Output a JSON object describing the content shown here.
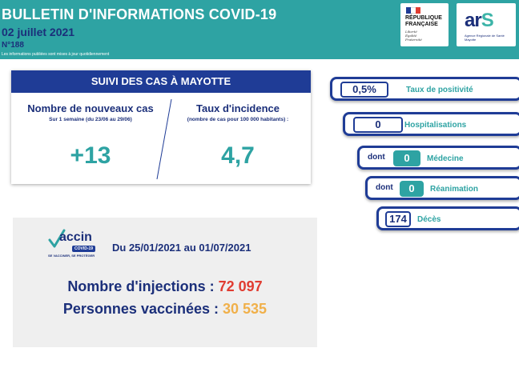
{
  "header": {
    "title": "BULLETIN D'INFORMATIONS COVID-19",
    "date": "02 juillet 2021",
    "number": "N°188",
    "note": "Les informations publiées sont mises à jour quotidiennement"
  },
  "logos": {
    "republique_lines": [
      "RÉPUBLIQUE",
      "FRANÇAISE"
    ],
    "motto_lines": [
      "Liberté",
      "Égalité",
      "Fraternité"
    ],
    "ars_word": "ar",
    "ars_s": "S",
    "ars_subtitle": "Agence Régionale de Santé Mayotte"
  },
  "cases": {
    "header": "SUIVI DES CAS À MAYOTTE",
    "new_cases": {
      "label": "Nombre de nouveaux cas",
      "sub": "Sur 1 semaine (du 23/06 au 29/06)",
      "value": "+13"
    },
    "incidence": {
      "label": "Taux d'incidence",
      "sub": "(nombre de cas pour 100 000 habitants) :",
      "value": "4,7"
    }
  },
  "stats": {
    "positivity": {
      "value": "0,5%",
      "label": "Taux de positivité"
    },
    "hospital": {
      "value": "0",
      "label": "Hospitalisations"
    },
    "medecine": {
      "prefix": "dont",
      "value": "0",
      "label": "Médecine"
    },
    "reanimation": {
      "prefix": "dont",
      "value": "0",
      "label": "Réanimation"
    },
    "deces": {
      "value": "174",
      "label": "Décès"
    }
  },
  "vaccine": {
    "logo_word": "accin",
    "logo_tag": "COVID-19",
    "logo_slogan": "SE VACCINER, SE PROTÉGER",
    "period": "Du 25/01/2021 au 01/07/2021",
    "injections_label": "Nombre d'injections : ",
    "injections_value": "72 097",
    "vaccinated_label": "Personnes vaccinées : ",
    "vaccinated_value": "30 535"
  },
  "colors": {
    "teal": "#2ea3a3",
    "navy": "#1f3c96",
    "red": "#e03c31",
    "orange": "#f0b04a"
  }
}
